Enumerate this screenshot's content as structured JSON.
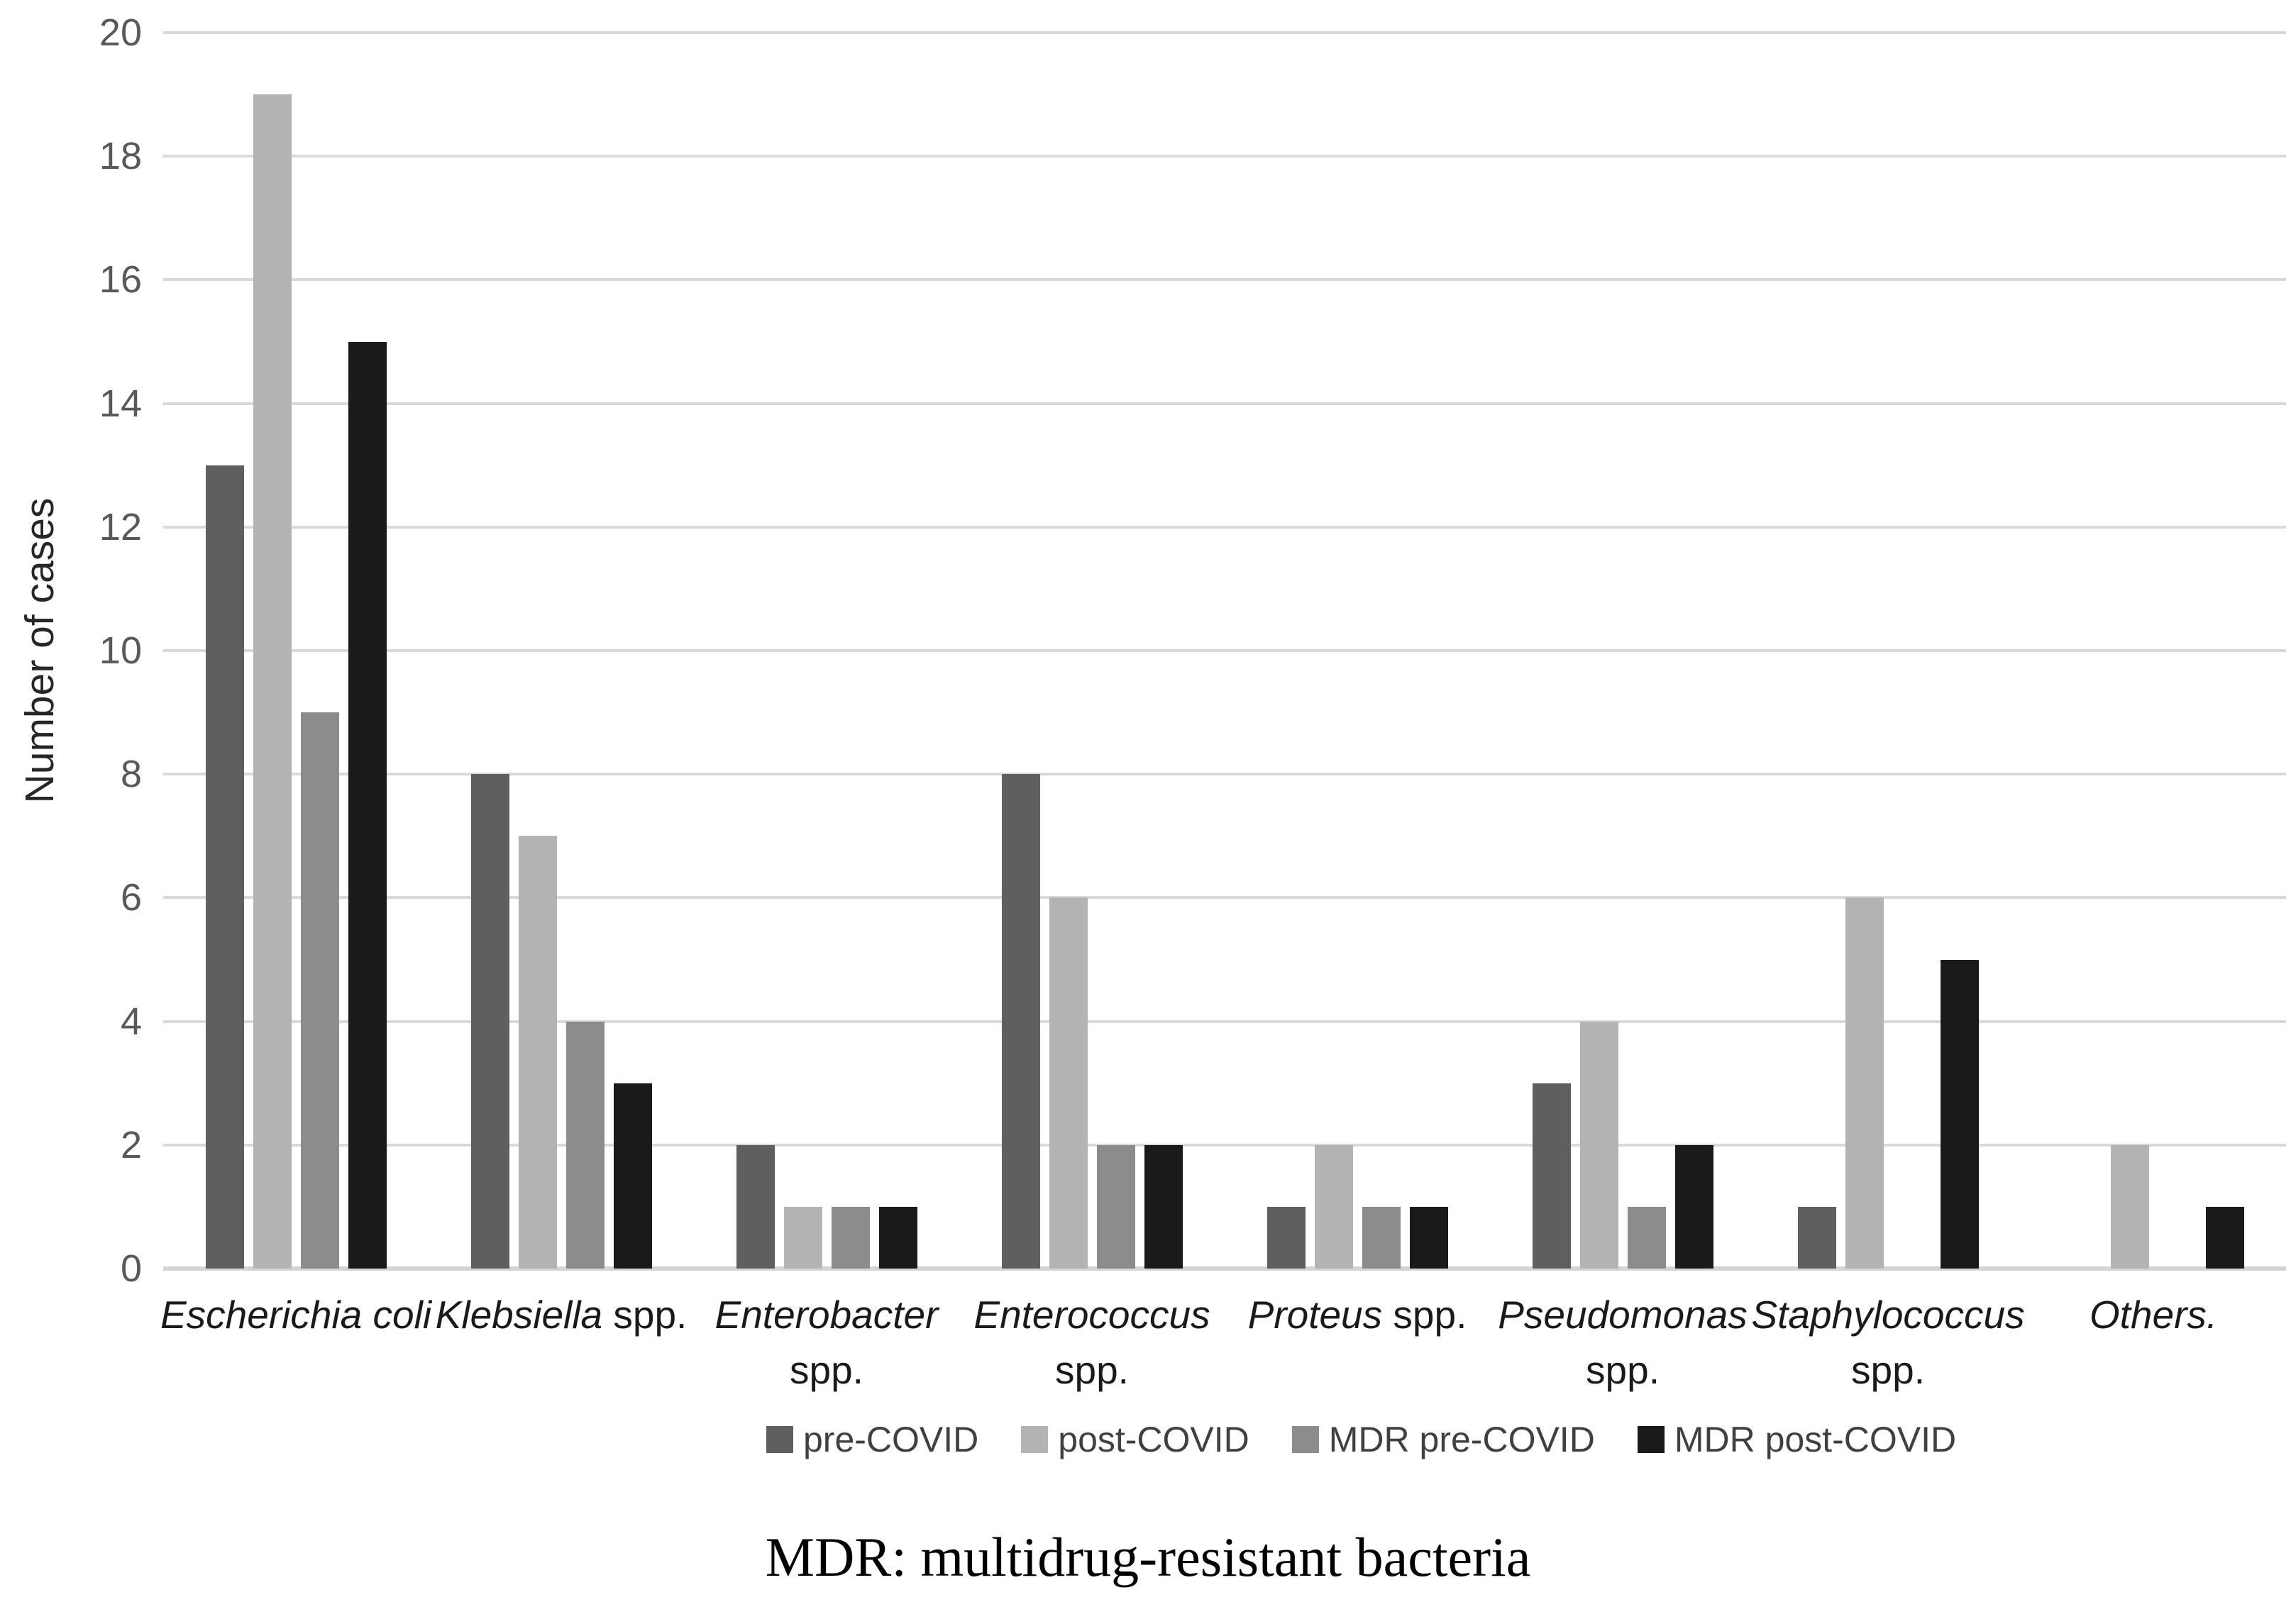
{
  "figure": {
    "y_axis_title": "Number of cases",
    "caption": "MDR: multidrug-resistant bacteria"
  },
  "chart_data": {
    "type": "bar",
    "title": "",
    "xlabel": "",
    "ylabel": "Number of cases",
    "ylim": [
      0,
      20
    ],
    "ytick_step": 2,
    "yticks": [
      0,
      2,
      4,
      6,
      8,
      10,
      12,
      14,
      16,
      18,
      20
    ],
    "grid": true,
    "legend_position": "bottom",
    "categories": [
      {
        "label": "Escherichia coli",
        "genus_italic": "Escherichia coli",
        "suffix_roman": "",
        "line2": ""
      },
      {
        "label": "Klebsiella spp.",
        "genus_italic": "Klebsiella",
        "suffix_roman": " spp.",
        "line2": ""
      },
      {
        "label": "Enterobacter spp.",
        "genus_italic": "Enterobacter",
        "suffix_roman": "",
        "line2": "spp."
      },
      {
        "label": "Enterococcus spp.",
        "genus_italic": "Enterococcus",
        "suffix_roman": "",
        "line2": "spp."
      },
      {
        "label": "Proteus spp.",
        "genus_italic": "Proteus",
        "suffix_roman": " spp.",
        "line2": ""
      },
      {
        "label": "Pseudomonas spp.",
        "genus_italic": "Pseudomonas",
        "suffix_roman": "",
        "line2": "spp."
      },
      {
        "label": "Staphylococcus spp.",
        "genus_italic": "Staphylococcus",
        "suffix_roman": "",
        "line2": "spp."
      },
      {
        "label": "Others.",
        "genus_italic": "Others.",
        "suffix_roman": "",
        "line2": ""
      }
    ],
    "series": [
      {
        "name": "pre-COVID",
        "color": "#5f5f5f",
        "values": [
          13,
          8,
          2,
          8,
          1,
          3,
          1,
          0
        ]
      },
      {
        "name": "post-COVID",
        "color": "#b3b3b3",
        "values": [
          19,
          7,
          1,
          6,
          2,
          4,
          6,
          2
        ]
      },
      {
        "name": "MDR pre-COVID",
        "color": "#8c8c8c",
        "values": [
          9,
          4,
          1,
          2,
          1,
          1,
          0,
          0
        ]
      },
      {
        "name": "MDR post-COVID",
        "color": "#1a1a1a",
        "values": [
          15,
          3,
          1,
          2,
          1,
          2,
          5,
          1
        ]
      }
    ]
  },
  "legend": {
    "items": [
      "pre-COVID",
      "post-COVID",
      "MDR pre-COVID",
      "MDR post-COVID"
    ]
  },
  "colors": {
    "background": "#ffffff",
    "gridline": "#d9d9d9",
    "axis_line": "#d4d4d4",
    "tick_text": "#595959",
    "category_text": "#1a1a1a",
    "legend_text": "#404040",
    "caption_text": "#000000"
  }
}
